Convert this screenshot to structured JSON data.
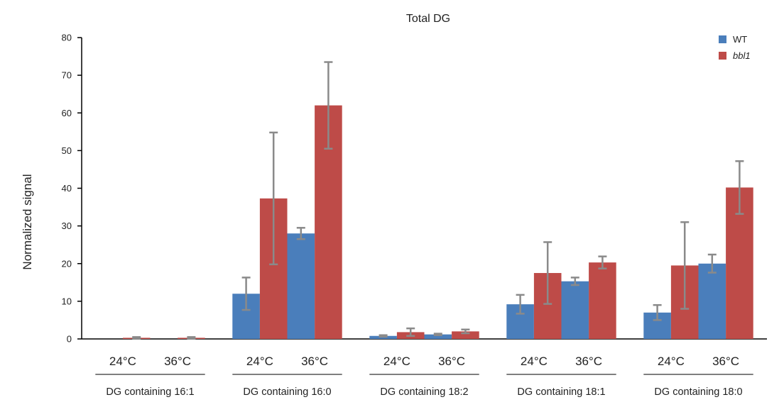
{
  "chart_data": {
    "type": "bar",
    "title": "Total DG",
    "ylabel": "Normalized signal",
    "ylim": [
      0,
      80
    ],
    "yticks": [
      0,
      10,
      20,
      30,
      40,
      50,
      60,
      70,
      80
    ],
    "groups": [
      "DG containing 16:1",
      "DG containing 16:0",
      "DG containing 18:2",
      "DG containing 18:1",
      "DG containing 18:0"
    ],
    "conditions": [
      "24°C",
      "36°C"
    ],
    "categories": [
      "DG containing 16:1 24°C",
      "DG containing 16:1 36°C",
      "DG containing 16:0 24°C",
      "DG containing 16:0 36°C",
      "DG containing 18:2 24°C",
      "DG containing 18:2 36°C",
      "DG containing 18:1 24°C",
      "DG containing 18:1 36°C",
      "DG containing 18:0 24°C",
      "DG containing 18:0 36°C"
    ],
    "series": [
      {
        "name": "WT",
        "color": "#4a7ebb",
        "values": [
          0,
          0,
          12,
          28,
          0.8,
          1.2,
          9.2,
          15.3,
          7,
          20
        ],
        "errors": [
          0,
          0,
          4.3,
          1.5,
          0.2,
          0.2,
          2.5,
          1,
          2,
          2.4
        ]
      },
      {
        "name": "bbl1",
        "color": "#be4b48",
        "values": [
          0.3,
          0.3,
          37.3,
          62,
          1.8,
          2,
          17.5,
          20.3,
          19.5,
          40.2
        ],
        "errors": [
          0.2,
          0.2,
          17.5,
          11.5,
          1,
          0.5,
          8.2,
          1.6,
          11.5,
          7
        ]
      }
    ],
    "legend": {
      "placement": "top-right",
      "entries": [
        "WT",
        "bbl1"
      ]
    },
    "grid": false
  }
}
